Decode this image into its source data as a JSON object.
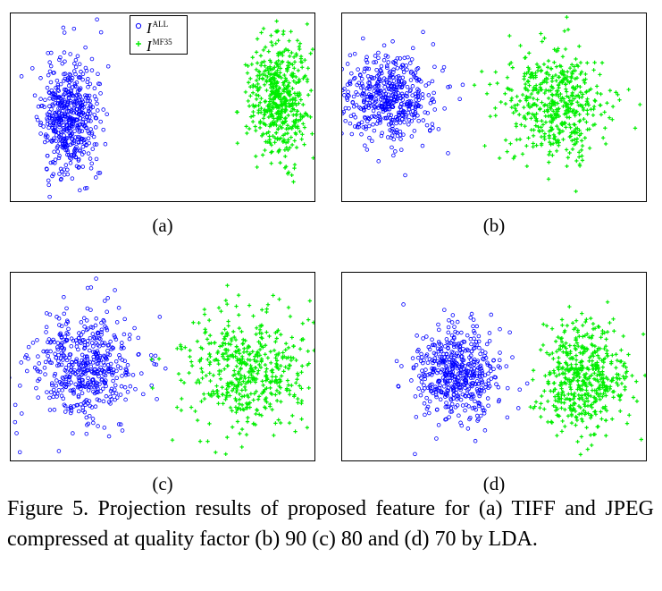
{
  "figure": {
    "caption": "Figure 5. Projection results of proposed feature for (a) TIFF and JPEG compressed at quality factor (b) 90 (c) 80 and (d) 70 by LDA."
  },
  "legend": {
    "entries": [
      {
        "letter": "I",
        "superscript": "ALL",
        "marker": "o",
        "color": "#0000ff"
      },
      {
        "letter": "I",
        "superscript": "MF35",
        "marker": "+",
        "color": "#00ee00"
      }
    ]
  },
  "colors": {
    "class1": "#0000ff",
    "class2": "#00ee00"
  },
  "chart_data": [
    {
      "type": "scatter",
      "label": "(a)",
      "title": "",
      "xlabel": "",
      "ylabel": "",
      "axes_ticks": false,
      "xlim": [
        0,
        1
      ],
      "ylim": [
        0,
        1
      ],
      "series": [
        {
          "name": "I^ALL",
          "marker": "o",
          "color": "#0000ff",
          "n": 520,
          "center": [
            0.19,
            0.45
          ],
          "spread": [
            0.045,
            0.15
          ],
          "seed": 11
        },
        {
          "name": "I^MF35",
          "marker": "+",
          "color": "#00ee00",
          "n": 520,
          "center": [
            0.885,
            0.55
          ],
          "spread": [
            0.045,
            0.15
          ],
          "seed": 12
        }
      ]
    },
    {
      "type": "scatter",
      "label": "(b)",
      "title": "",
      "xlabel": "",
      "ylabel": "",
      "axes_ticks": false,
      "xlim": [
        0,
        1
      ],
      "ylim": [
        0,
        1
      ],
      "series": [
        {
          "name": "I^ALL",
          "marker": "o",
          "color": "#0000ff",
          "n": 500,
          "center": [
            0.15,
            0.55
          ],
          "spread": [
            0.08,
            0.12
          ],
          "seed": 21
        },
        {
          "name": "I^MF35",
          "marker": "+",
          "color": "#00ee00",
          "n": 500,
          "center": [
            0.7,
            0.52
          ],
          "spread": [
            0.085,
            0.14
          ],
          "seed": 22
        }
      ]
    },
    {
      "type": "scatter",
      "label": "(c)",
      "title": "",
      "xlabel": "",
      "ylabel": "",
      "axes_ticks": false,
      "xlim": [
        0,
        1
      ],
      "ylim": [
        0,
        1
      ],
      "series": [
        {
          "name": "I^ALL",
          "marker": "o",
          "color": "#0000ff",
          "n": 500,
          "center": [
            0.25,
            0.5
          ],
          "spread": [
            0.09,
            0.15
          ],
          "seed": 31
        },
        {
          "name": "I^MF35",
          "marker": "+",
          "color": "#00ee00",
          "n": 500,
          "center": [
            0.78,
            0.47
          ],
          "spread": [
            0.1,
            0.15
          ],
          "seed": 32
        }
      ]
    },
    {
      "type": "scatter",
      "label": "(d)",
      "title": "",
      "xlabel": "",
      "ylabel": "",
      "axes_ticks": false,
      "xlim": [
        0,
        1
      ],
      "ylim": [
        0,
        1
      ],
      "series": [
        {
          "name": "I^ALL",
          "marker": "o",
          "color": "#0000ff",
          "n": 500,
          "center": [
            0.38,
            0.47
          ],
          "spread": [
            0.07,
            0.13
          ],
          "seed": 41
        },
        {
          "name": "I^MF35",
          "marker": "+",
          "color": "#00ee00",
          "n": 500,
          "center": [
            0.79,
            0.44
          ],
          "spread": [
            0.075,
            0.14
          ],
          "seed": 42
        }
      ]
    }
  ]
}
